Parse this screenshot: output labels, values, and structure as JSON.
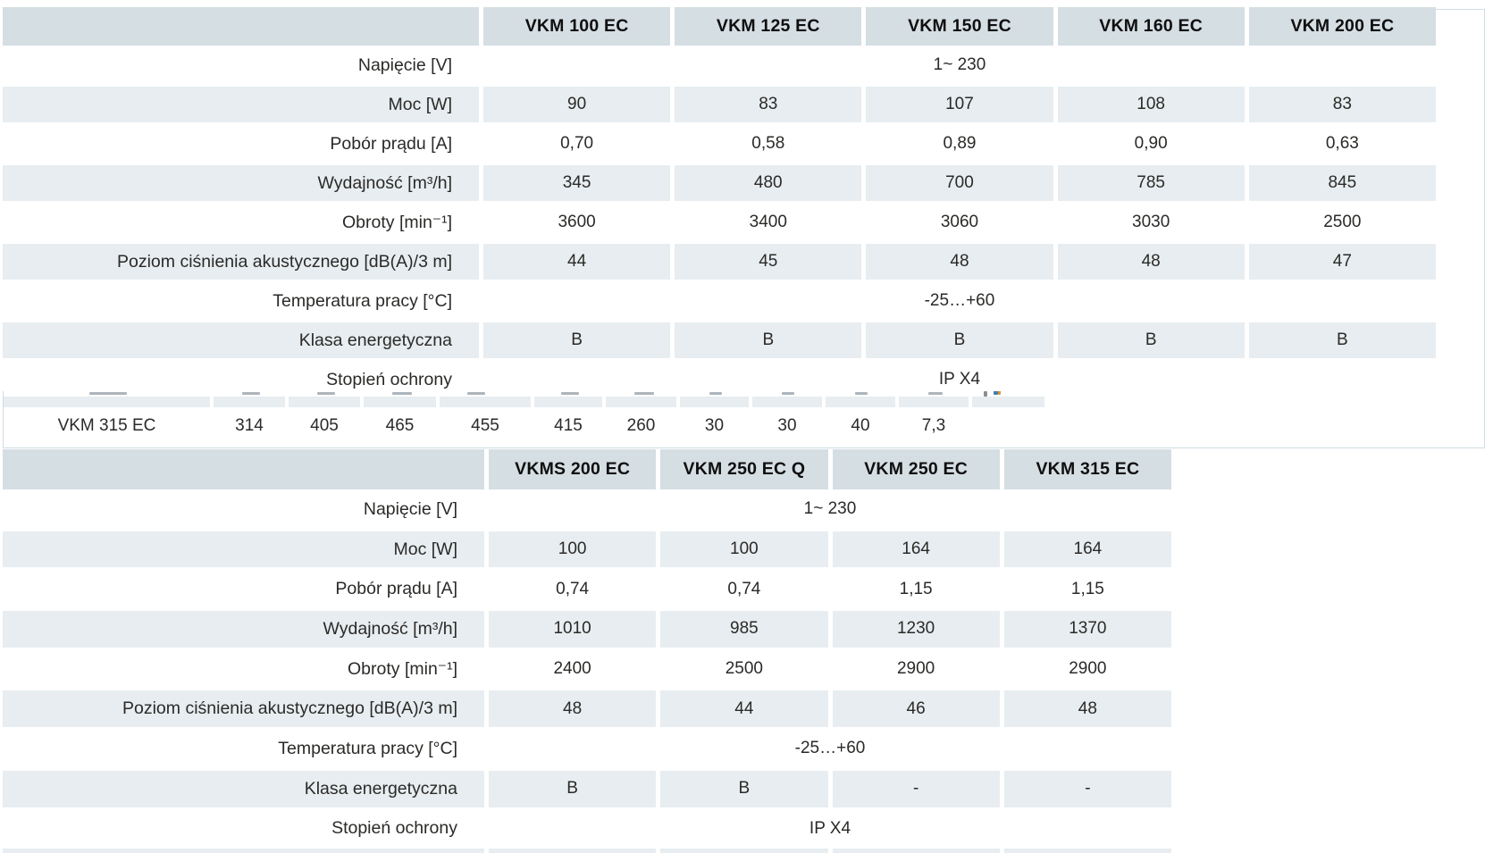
{
  "colors": {
    "header_band": "#d5dee3",
    "zebra_row": "#e7edf0",
    "box_border": "#cfdce4",
    "text": "#2b2a28"
  },
  "table1": {
    "columns": [
      "VKM 100 EC",
      "VKM 125 EC",
      "VKM 150 EC",
      "VKM 160 EC",
      "VKM 200 EC"
    ],
    "rows": [
      {
        "label": "Napięcie [V]",
        "merged": "1~ 230"
      },
      {
        "label": "Moc [W]",
        "values": [
          "90",
          "83",
          "107",
          "108",
          "83"
        ],
        "gray": true
      },
      {
        "label": "Pobór prądu [A]",
        "values": [
          "0,70",
          "0,58",
          "0,89",
          "0,90",
          "0,63"
        ]
      },
      {
        "label": "Wydajność [m³/h]",
        "values": [
          "345",
          "480",
          "700",
          "785",
          "845"
        ],
        "gray": true
      },
      {
        "label": "Obroty [min⁻¹]",
        "values": [
          "3600",
          "3400",
          "3060",
          "3030",
          "2500"
        ]
      },
      {
        "label": "Poziom ciśnienia akustycznego [dB(A)/3 m]",
        "values": [
          "44",
          "45",
          "48",
          "48",
          "47"
        ],
        "gray": true
      },
      {
        "label": "Temperatura pracy [°C]",
        "merged": "-25…+60"
      },
      {
        "label": "Klasa energetyczna",
        "values": [
          "B",
          "B",
          "B",
          "B",
          "B"
        ],
        "gray": true
      },
      {
        "label": "Stopień ochrony",
        "merged": "IP X4"
      }
    ]
  },
  "table2": {
    "columns": [
      "VKMS 200 EC",
      "VKM 250 EC Q",
      "VKM 250 EC",
      "VKM 315 EC"
    ],
    "rows": [
      {
        "label": "Napięcie [V]",
        "merged": "1~ 230"
      },
      {
        "label": "Moc [W]",
        "values": [
          "100",
          "100",
          "164",
          "164"
        ],
        "gray": true
      },
      {
        "label": "Pobór prądu [A]",
        "values": [
          "0,74",
          "0,74",
          "1,15",
          "1,15"
        ]
      },
      {
        "label": "Wydajność [m³/h]",
        "values": [
          "1010",
          "985",
          "1230",
          "1370"
        ],
        "gray": true
      },
      {
        "label": "Obroty [min⁻¹]",
        "values": [
          "2400",
          "2500",
          "2900",
          "2900"
        ]
      },
      {
        "label": "Poziom ciśnienia akustycznego [dB(A)/3 m]",
        "values": [
          "48",
          "44",
          "46",
          "48"
        ],
        "gray": true
      },
      {
        "label": "Temperatura pracy [°C]",
        "merged": "-25…+60"
      },
      {
        "label": "Klasa energetyczna",
        "values": [
          "B",
          "B",
          "-",
          "-"
        ],
        "gray": true
      },
      {
        "label": "Stopień ochrony",
        "merged": "IP X4"
      }
    ]
  },
  "underlying_row": {
    "label": "VKM 315 EC",
    "values": [
      "314",
      "405",
      "465",
      "455",
      "415",
      "260",
      "30",
      "30",
      "40",
      "7,3"
    ]
  }
}
